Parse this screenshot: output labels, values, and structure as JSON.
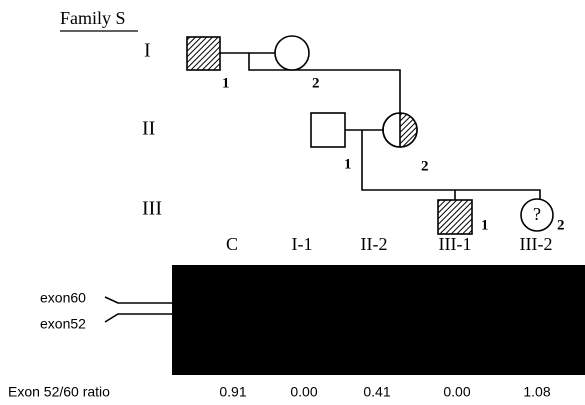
{
  "title": "Family S",
  "generations": [
    "I",
    "II",
    "III"
  ],
  "nodes": [
    {
      "label": "1"
    },
    {
      "label": "2"
    },
    {
      "label": "1"
    },
    {
      "label": "2"
    },
    {
      "label": "1"
    },
    {
      "label": "2",
      "mark": "?"
    }
  ],
  "gel": {
    "lanes": [
      "C",
      "I-1",
      "II-2",
      "III-1",
      "III-2"
    ],
    "bands": [
      "exon60",
      "exon52"
    ]
  },
  "ratio": {
    "label": "Exon 52/60 ratio",
    "values": [
      "0.91",
      "0.00",
      "0.41",
      "0.00",
      "1.08"
    ]
  }
}
